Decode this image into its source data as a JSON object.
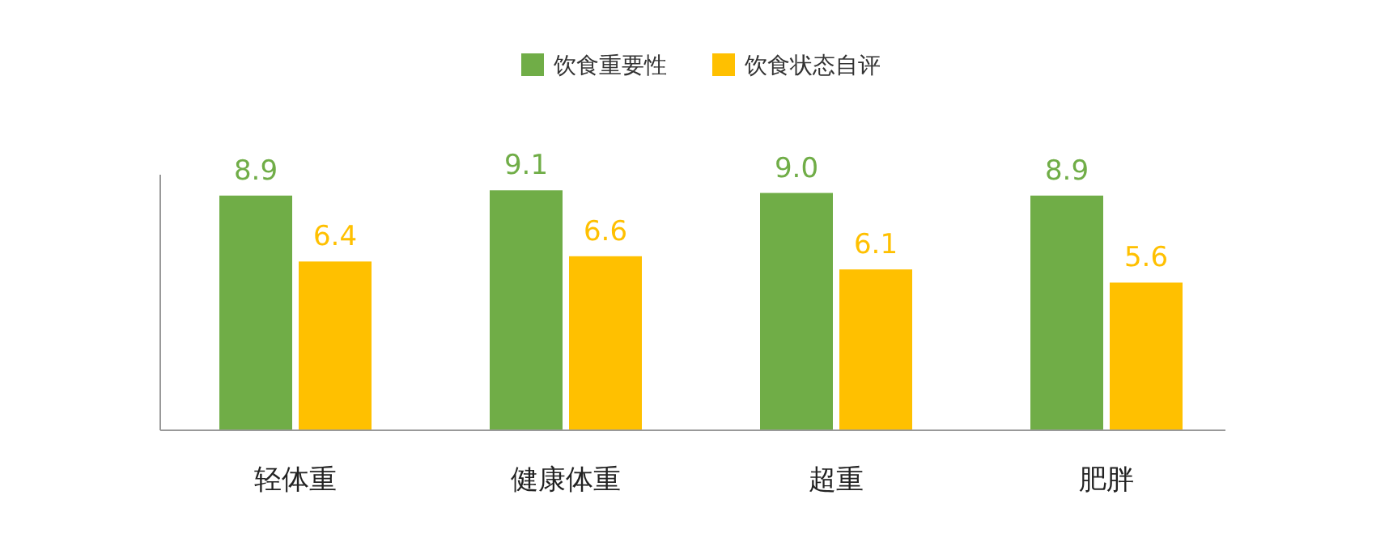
{
  "chart_data": {
    "type": "bar",
    "categories": [
      "轻体重",
      "健康体重",
      "超重",
      "肥胖"
    ],
    "series": [
      {
        "name": "饮食重要性",
        "color": "#70ad47",
        "values": [
          8.9,
          9.1,
          9.0,
          8.9
        ],
        "value_labels": [
          "8.9",
          "9.1",
          "9.0",
          "8.9"
        ]
      },
      {
        "name": "饮食状态自评",
        "color": "#ffc000",
        "values": [
          6.4,
          6.6,
          6.1,
          5.6
        ],
        "value_labels": [
          "6.4",
          "6.6",
          "6.1",
          "5.6"
        ]
      }
    ],
    "legend": "top",
    "grid": false
  }
}
